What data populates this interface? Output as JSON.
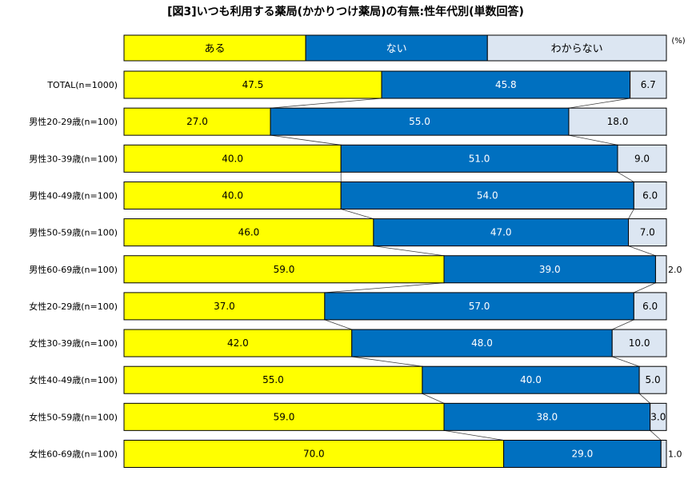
{
  "chart_data": {
    "type": "bar",
    "orientation": "horizontal",
    "stacked": "100%",
    "title": "[図3]いつも利用する薬局(かかりつけ薬局)の有無:性年代別(単数回答)",
    "unit": "(%)",
    "categories": [
      "TOTAL(n=1000)",
      "男性20-29歳(n=100)",
      "男性30-39歳(n=100)",
      "男性40-49歳(n=100)",
      "男性50-59歳(n=100)",
      "男性60-69歳(n=100)",
      "女性20-29歳(n=100)",
      "女性30-39歳(n=100)",
      "女性40-49歳(n=100)",
      "女性50-59歳(n=100)",
      "女性60-69歳(n=100)"
    ],
    "series": [
      {
        "name": "ある",
        "color": "#ffff00",
        "label_color": "#000000",
        "values": [
          47.5,
          27.0,
          40.0,
          40.0,
          46.0,
          59.0,
          37.0,
          42.0,
          55.0,
          59.0,
          70.0
        ],
        "labels": [
          "47.5",
          "27.0",
          "40.0",
          "40.0",
          "46.0",
          "59.0",
          "37.0",
          "42.0",
          "55.0",
          "59.0",
          "70.0"
        ]
      },
      {
        "name": "ない",
        "color": "#0070c0",
        "label_color": "#ffffff",
        "values": [
          45.8,
          55.0,
          51.0,
          54.0,
          47.0,
          39.0,
          57.0,
          48.0,
          40.0,
          38.0,
          29.0
        ],
        "labels": [
          "45.8",
          "55.0",
          "51.0",
          "54.0",
          "47.0",
          "39.0",
          "57.0",
          "48.0",
          "40.0",
          "38.0",
          "29.0"
        ]
      },
      {
        "name": "わからない",
        "color": "#dce6f2",
        "label_color": "#000000",
        "values": [
          6.7,
          18.0,
          9.0,
          6.0,
          7.0,
          2.0,
          6.0,
          10.0,
          5.0,
          3.0,
          1.0
        ],
        "labels": [
          "6.7",
          "18.0",
          "9.0",
          "6.0",
          "7.0",
          "2.0",
          "6.0",
          "10.0",
          "5.0",
          "3.0",
          "1.0"
        ]
      }
    ],
    "xlim": [
      0,
      100
    ],
    "legend_position": "top",
    "series_lines": true,
    "grid": false
  }
}
